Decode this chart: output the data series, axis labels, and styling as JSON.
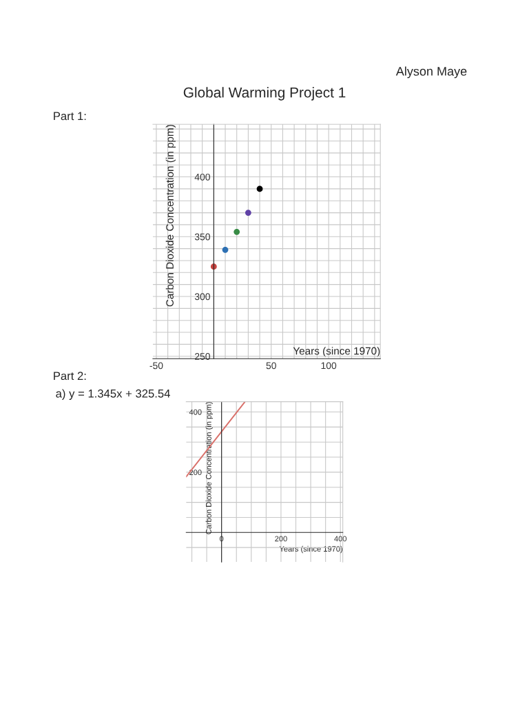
{
  "chart_data": [
    {
      "type": "scatter",
      "title": "Global Warming Project 1",
      "annotations": [
        "Alyson Maye",
        "Part 1:"
      ],
      "xlabel": "Years (since 1970)",
      "ylabel": "Carbon Dioxide Concentration (in ppm)",
      "marker": "circle",
      "grid": true,
      "series": [
        {
          "x": [
            0,
            10,
            20,
            30,
            40
          ],
          "values": [
            325,
            339,
            354,
            370,
            390
          ],
          "colors": [
            "#c74440",
            "#2d70b3",
            "#388c46",
            "#6042a6",
            "#000000"
          ]
        }
      ],
      "xlim": [
        -53,
        145
      ],
      "ylim": [
        248,
        444
      ],
      "xticks": [
        {
          "value": -50,
          "label": "-50"
        },
        {
          "value": -40,
          "label": null
        },
        {
          "value": -30,
          "label": null
        },
        {
          "value": -20,
          "label": null
        },
        {
          "value": -10,
          "label": null
        },
        {
          "value": 0,
          "label": null
        },
        {
          "value": 10,
          "label": null
        },
        {
          "value": 20,
          "label": null
        },
        {
          "value": 30,
          "label": null
        },
        {
          "value": 40,
          "label": null
        },
        50,
        {
          "value": 60,
          "label": null
        },
        {
          "value": 70,
          "label": null
        },
        {
          "value": 80,
          "label": null
        },
        {
          "value": 90,
          "label": null
        },
        100,
        {
          "value": 110,
          "label": null
        },
        {
          "value": 120,
          "label": null
        },
        {
          "value": 130,
          "label": null
        },
        {
          "value": 140,
          "label": null
        }
      ],
      "yticks": [
        250,
        {
          "value": 260,
          "label": null
        },
        {
          "value": 270,
          "label": null
        },
        {
          "value": 280,
          "label": null
        },
        {
          "value": 290,
          "label": null
        },
        300,
        {
          "value": 310,
          "label": null
        },
        {
          "value": 320,
          "label": null
        },
        {
          "value": 330,
          "label": null
        },
        {
          "value": 340,
          "label": null
        },
        350,
        {
          "value": 360,
          "label": null
        },
        {
          "value": 370,
          "label": null
        },
        {
          "value": 380,
          "label": null
        },
        {
          "value": 390,
          "label": null
        },
        400,
        {
          "value": 410,
          "label": null
        },
        {
          "value": 420,
          "label": null
        },
        {
          "value": 430,
          "label": null
        },
        {
          "value": 440,
          "label": null
        }
      ]
    },
    {
      "type": "line",
      "annotations": [
        "Part 2:",
        "a) y = 1.345x + 325.54"
      ],
      "xlabel": "Years (since 1970)",
      "ylabel": "Carbon Dioxide Concentration (in ppm)",
      "grid": true,
      "line_style": "solid",
      "series": [
        {
          "x": [
            -119,
            78
          ],
          "values": [
            185,
            433
          ],
          "color": "#d9706a"
        }
      ],
      "xlim": [
        -119,
        408
      ],
      "ylim": [
        -98,
        434
      ],
      "xticks": [
        {
          "value": -100,
          "label": null
        },
        {
          "value": -50,
          "label": null
        },
        0,
        {
          "value": 50,
          "label": null
        },
        {
          "value": 100,
          "label": null
        },
        {
          "value": 150,
          "label": null
        },
        200,
        {
          "value": 250,
          "label": null
        },
        {
          "value": 300,
          "label": null
        },
        {
          "value": 350,
          "label": null
        },
        400
      ],
      "yticks": [
        {
          "value": -50,
          "label": null
        },
        {
          "value": 50,
          "label": null
        },
        {
          "value": 100,
          "label": null
        },
        {
          "value": 150,
          "label": null
        },
        200,
        {
          "value": 250,
          "label": null
        },
        {
          "value": 300,
          "label": null
        },
        {
          "value": 350,
          "label": null
        },
        400
      ]
    }
  ]
}
